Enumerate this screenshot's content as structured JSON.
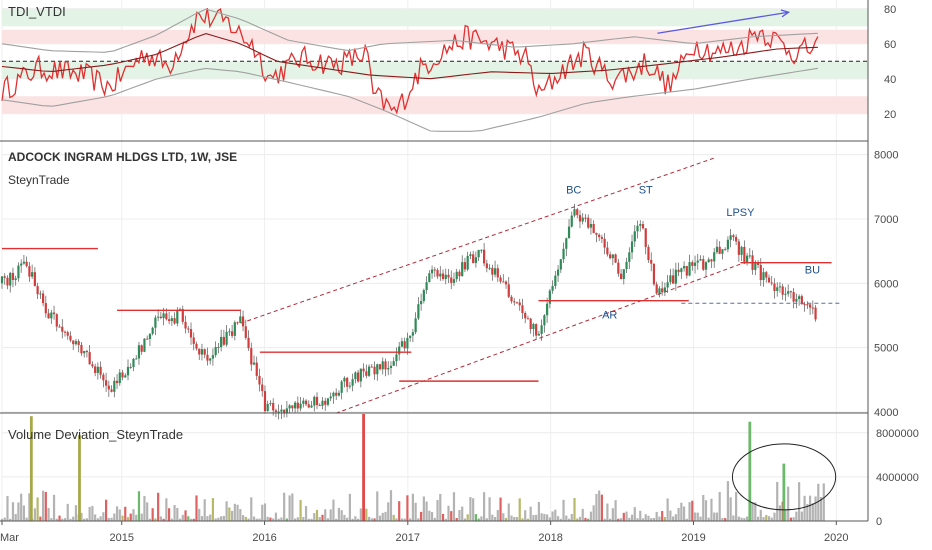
{
  "chart_data": [
    {
      "type": "line",
      "title": "TDI_VTDI",
      "ylim": [
        5,
        85
      ],
      "yticks": [
        20,
        40,
        60,
        80
      ],
      "zones": [
        {
          "from": 70,
          "to": 80,
          "color": "#e3f4e6"
        },
        {
          "from": 60,
          "to": 68,
          "color": "#fbe3e4"
        },
        {
          "from": 40,
          "to": 50,
          "color": "#e3f4e6"
        },
        {
          "from": 20,
          "to": 30,
          "color": "#fbe3e4"
        }
      ],
      "midline": 50,
      "series": [
        {
          "role": "price",
          "color": "#e03030",
          "x": [
            "2014-03-01",
            "2014-06-01",
            "2014-10-01",
            "2014-12-01",
            "2015-03-01",
            "2015-05-01",
            "2015-07-15",
            "2015-10-01",
            "2015-11-01",
            "2015-12-01",
            "2016-01-15",
            "2016-04-01",
            "2016-07-01",
            "2016-09-01",
            "2016-09-20",
            "2016-10-01",
            "2016-12-01",
            "2017-02-01",
            "2017-04-01",
            "2017-06-01",
            "2017-09-01",
            "2017-11-01",
            "2017-12-01",
            "2018-02-01",
            "2018-04-01",
            "2018-06-01",
            "2018-08-01",
            "2018-09-01",
            "2018-11-01",
            "2019-01-01",
            "2019-03-01",
            "2019-05-01",
            "2019-06-15",
            "2019-08-01",
            "2019-09-15",
            "2019-11-15"
          ],
          "y": [
            33,
            46,
            42,
            35,
            55,
            47,
            76,
            72,
            65,
            60,
            40,
            52,
            48,
            53,
            55,
            32,
            20,
            45,
            56,
            64,
            58,
            52,
            30,
            45,
            55,
            40,
            44,
            50,
            35,
            60,
            55,
            58,
            68,
            62,
            55,
            58
          ]
        },
        {
          "role": "signal",
          "color": "#8b1a1a",
          "x": [
            "2014-03-01",
            "2014-07-01",
            "2014-12-01",
            "2015-04-01",
            "2015-08-01",
            "2015-11-01",
            "2016-02-01",
            "2016-07-01",
            "2016-10-01",
            "2017-03-01",
            "2017-08-01",
            "2018-01-01",
            "2018-06-01",
            "2018-10-01",
            "2019-03-01",
            "2019-08-01",
            "2019-11-15"
          ],
          "y": [
            47,
            44,
            48,
            54,
            66,
            60,
            50,
            45,
            42,
            40,
            44,
            43,
            45,
            48,
            52,
            57,
            58
          ]
        },
        {
          "role": "upper-band",
          "color": "#a0a0a0",
          "x": [
            "2014-03-01",
            "2014-07-01",
            "2014-12-01",
            "2015-04-01",
            "2015-08-01",
            "2015-11-01",
            "2016-03-01",
            "2016-08-01",
            "2016-11-01",
            "2017-05-01",
            "2017-10-01",
            "2018-03-01",
            "2018-08-01",
            "2019-01-01",
            "2019-06-01",
            "2019-11-15"
          ],
          "y": [
            60,
            56,
            55,
            65,
            80,
            74,
            62,
            56,
            60,
            62,
            58,
            60,
            64,
            60,
            64,
            66
          ]
        },
        {
          "role": "lower-band",
          "color": "#a0a0a0",
          "x": [
            "2014-03-01",
            "2014-07-01",
            "2014-12-01",
            "2015-04-01",
            "2015-08-01",
            "2015-11-01",
            "2016-03-01",
            "2016-08-01",
            "2016-11-01",
            "2017-03-01",
            "2017-07-01",
            "2017-12-01",
            "2018-04-01",
            "2018-08-01",
            "2019-01-01",
            "2019-06-01",
            "2019-11-15"
          ],
          "y": [
            28,
            24,
            30,
            40,
            46,
            44,
            38,
            30,
            22,
            10,
            10,
            18,
            26,
            30,
            34,
            40,
            46
          ]
        },
        {
          "role": "trend-arrow",
          "color": "#5a5ae0",
          "x": [
            "2018-10-01",
            "2019-09-01"
          ],
          "y": [
            66,
            78
          ]
        }
      ]
    },
    {
      "type": "candlestick",
      "title": "ADCOCK INGRAM HLDGS LTD, 1W, JSE",
      "subtitle": "SteynTrade",
      "ylim": [
        4000,
        8150
      ],
      "yticks": [
        4000,
        5000,
        6000,
        7000,
        8000
      ],
      "price_path": {
        "x": [
          "2014-03-01",
          "2014-05-01",
          "2014-07-01",
          "2014-10-01",
          "2014-12-01",
          "2015-04-01",
          "2015-06-01",
          "2015-08-01",
          "2015-11-01",
          "2016-01-01",
          "2016-03-01",
          "2016-06-01",
          "2016-09-01",
          "2016-11-01",
          "2017-01-01",
          "2017-03-01",
          "2017-05-01",
          "2017-07-01",
          "2017-09-01",
          "2017-11-01",
          "2017-12-01",
          "2018-01-01",
          "2018-03-01",
          "2018-05-01",
          "2018-07-01",
          "2018-08-15",
          "2018-10-01",
          "2018-12-01",
          "2019-02-01",
          "2019-04-01",
          "2019-06-01",
          "2019-07-15",
          "2019-09-01",
          "2019-10-15",
          "2019-11-15"
        ],
        "y": [
          6000,
          6300,
          5500,
          4900,
          4300,
          5400,
          5500,
          4800,
          5400,
          4100,
          4000,
          4200,
          4600,
          4700,
          5100,
          6200,
          6100,
          6500,
          6000,
          5400,
          5200,
          5900,
          7100,
          6800,
          6100,
          7000,
          5800,
          6200,
          6300,
          6700,
          6300,
          6000,
          5800,
          5700,
          5400
        ]
      },
      "levels": [
        {
          "x1": "2014-03-01",
          "x2": "2014-11-01",
          "y": 6540,
          "style": "solid",
          "color": "#e03030"
        },
        {
          "x1": "2014-12-20",
          "x2": "2015-11-01",
          "y": 5580,
          "style": "solid",
          "color": "#e03030"
        },
        {
          "x1": "2015-12-20",
          "x2": "2017-01-10",
          "y": 4930,
          "style": "solid",
          "color": "#e03030"
        },
        {
          "x1": "2016-12-10",
          "x2": "2017-12-01",
          "y": 4480,
          "style": "solid",
          "color": "#e03030"
        },
        {
          "x1": "2017-12-01",
          "x2": "2018-12-20",
          "y": 5730,
          "style": "solid",
          "color": "#e03030"
        },
        {
          "x1": "2019-05-01",
          "x2": "2019-12-20",
          "y": 6320,
          "style": "solid",
          "color": "#e03030"
        },
        {
          "x1": "2018-12-01",
          "x2": "2020-01-15",
          "y": 5690,
          "style": "dashed",
          "color": "#5a6e9a"
        }
      ],
      "channel": [
        {
          "x1": "2015-11-01",
          "y1": 5380,
          "x2": "2019-03-01",
          "y2": 7960
        },
        {
          "x1": "2016-07-01",
          "y1": 3980,
          "x2": "2019-05-15",
          "y2": 6330
        }
      ],
      "annotations": [
        {
          "text": "BC",
          "x": "2018-03-01",
          "y": 7400
        },
        {
          "text": "ST",
          "x": "2018-09-01",
          "y": 7400
        },
        {
          "text": "LPSY",
          "x": "2019-05-01",
          "y": 7050
        },
        {
          "text": "BU",
          "x": "2019-11-01",
          "y": 6150
        },
        {
          "text": "AR",
          "x": "2018-06-01",
          "y": 5450
        }
      ]
    },
    {
      "type": "bar",
      "title": "Volume Deviation_SteynTrade",
      "ylim": [
        0,
        9700000
      ],
      "yticks": [
        0,
        4000000,
        8000000
      ],
      "highlights": [
        {
          "x": "2014-05-15",
          "value": 9500000,
          "color": "#a7a84a"
        },
        {
          "x": "2014-09-15",
          "value": 7800000,
          "color": "#a7a84a"
        },
        {
          "x": "2016-09-10",
          "value": 10000000,
          "color": "#e34848"
        },
        {
          "x": "2019-05-25",
          "value": 9000000,
          "color": "#6cb96c"
        },
        {
          "x": "2019-08-20",
          "value": 5200000,
          "color": "#6cb96c"
        }
      ]
    }
  ],
  "xaxis": {
    "ticks": [
      {
        "label": "Mar",
        "x": "2014-03-01"
      },
      {
        "label": "2015",
        "x": "2015-01-01"
      },
      {
        "label": "2016",
        "x": "2016-01-01"
      },
      {
        "label": "2017",
        "x": "2017-01-01"
      },
      {
        "label": "2018",
        "x": "2018-01-01"
      },
      {
        "label": "2019",
        "x": "2019-01-01"
      },
      {
        "label": "2020",
        "x": "2020-01-01"
      }
    ]
  }
}
